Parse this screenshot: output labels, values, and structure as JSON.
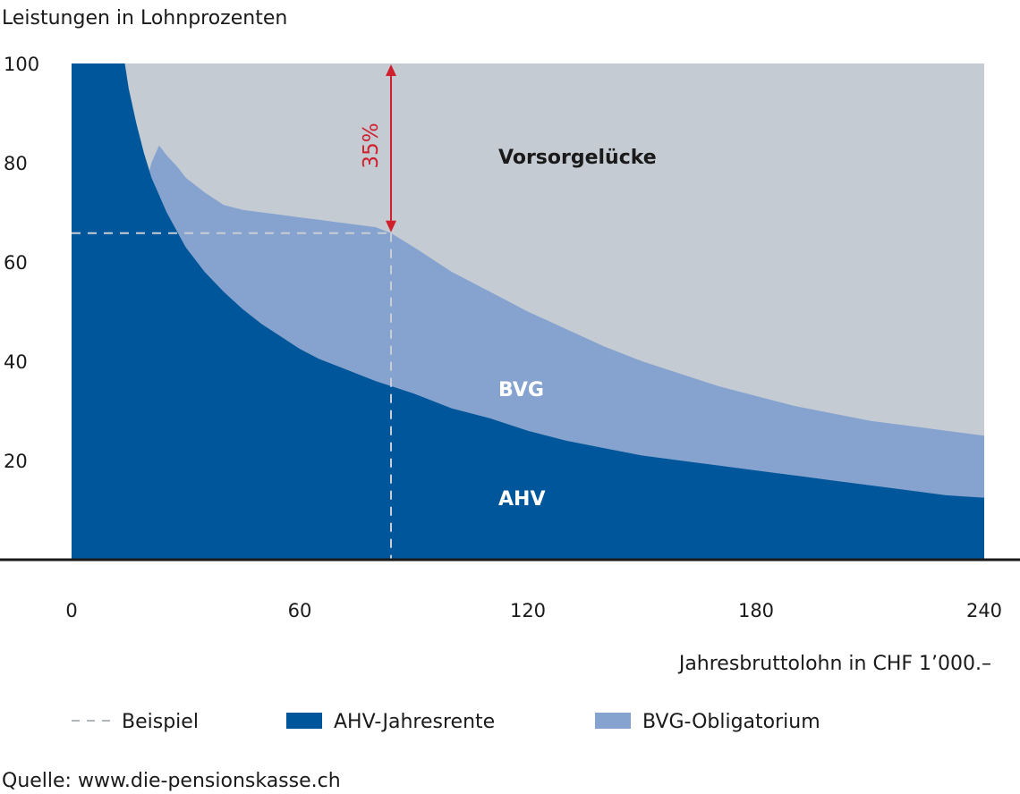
{
  "chart_data": {
    "type": "area",
    "ylabel": "Leistungen in Lohnprozenten",
    "xlabel": "Jahresbruttolohn in CHF 1’000.–",
    "xlim": [
      0,
      240
    ],
    "ylim": [
      0,
      100
    ],
    "x_ticks": [
      "0",
      "60",
      "120",
      "180",
      "240"
    ],
    "y_ticks": [
      "100",
      "80",
      "60",
      "40",
      "20"
    ],
    "x_tick_values": [
      0,
      60,
      120,
      180,
      240
    ],
    "y_tick_values": [
      100,
      80,
      60,
      40,
      20
    ],
    "series": [
      {
        "name": "AHV-Jahresrente",
        "color": "#00569b",
        "points": [
          [
            0,
            100
          ],
          [
            14,
            100
          ],
          [
            15,
            95
          ],
          [
            17,
            88
          ],
          [
            19,
            82
          ],
          [
            21,
            77
          ],
          [
            25,
            70
          ],
          [
            30,
            63
          ],
          [
            35,
            58
          ],
          [
            40,
            54
          ],
          [
            45,
            50.5
          ],
          [
            50,
            47.5
          ],
          [
            55,
            45
          ],
          [
            60,
            42.5
          ],
          [
            65,
            40.5
          ],
          [
            70,
            39
          ],
          [
            75,
            37.5
          ],
          [
            80,
            36
          ],
          [
            84,
            35
          ],
          [
            90,
            33.5
          ],
          [
            100,
            30.5
          ],
          [
            110,
            28.5
          ],
          [
            120,
            26
          ],
          [
            130,
            24
          ],
          [
            140,
            22.5
          ],
          [
            150,
            21
          ],
          [
            160,
            20
          ],
          [
            170,
            19
          ],
          [
            180,
            18
          ],
          [
            190,
            17
          ],
          [
            200,
            16
          ],
          [
            210,
            15
          ],
          [
            220,
            14
          ],
          [
            230,
            13
          ],
          [
            240,
            12.5
          ]
        ]
      },
      {
        "name": "BVG-Obligatorium",
        "color": "#86a3cf",
        "points": [
          [
            20,
            77
          ],
          [
            21,
            80
          ],
          [
            23,
            83.5
          ],
          [
            25,
            81.5
          ],
          [
            28,
            79
          ],
          [
            30,
            77
          ],
          [
            35,
            74
          ],
          [
            40,
            71.5
          ],
          [
            45,
            70.5
          ],
          [
            50,
            70
          ],
          [
            55,
            69.5
          ],
          [
            60,
            69
          ],
          [
            65,
            68.5
          ],
          [
            70,
            68
          ],
          [
            75,
            67.5
          ],
          [
            80,
            67
          ],
          [
            84,
            65.8
          ],
          [
            90,
            63
          ],
          [
            100,
            58
          ],
          [
            110,
            54
          ],
          [
            120,
            50
          ],
          [
            130,
            46.5
          ],
          [
            140,
            43
          ],
          [
            150,
            40
          ],
          [
            160,
            37.5
          ],
          [
            170,
            35
          ],
          [
            180,
            33
          ],
          [
            190,
            31
          ],
          [
            200,
            29.5
          ],
          [
            210,
            28
          ],
          [
            220,
            27
          ],
          [
            230,
            26
          ],
          [
            240,
            25
          ]
        ]
      }
    ],
    "gap": {
      "label": "Vorsorgelücke",
      "color": "#c4cbd3",
      "upper": 100
    },
    "example": {
      "x": 84,
      "y": 65.8,
      "gap_label": "35%",
      "gap_color": "#d0202e"
    },
    "region_labels": {
      "ahv": "AHV",
      "bvg": "BVG",
      "gap": "Vorsorgelücke"
    },
    "legend": [
      {
        "label": "Beispiel",
        "style": "dashed",
        "color": "#b0b7bf"
      },
      {
        "label": "AHV-Jahresrente",
        "style": "box",
        "color": "#00569b"
      },
      {
        "label": "BVG-Obligatorium",
        "style": "box",
        "color": "#86a3cf"
      }
    ],
    "source": "Quelle: www.die-pensionskasse.ch"
  }
}
